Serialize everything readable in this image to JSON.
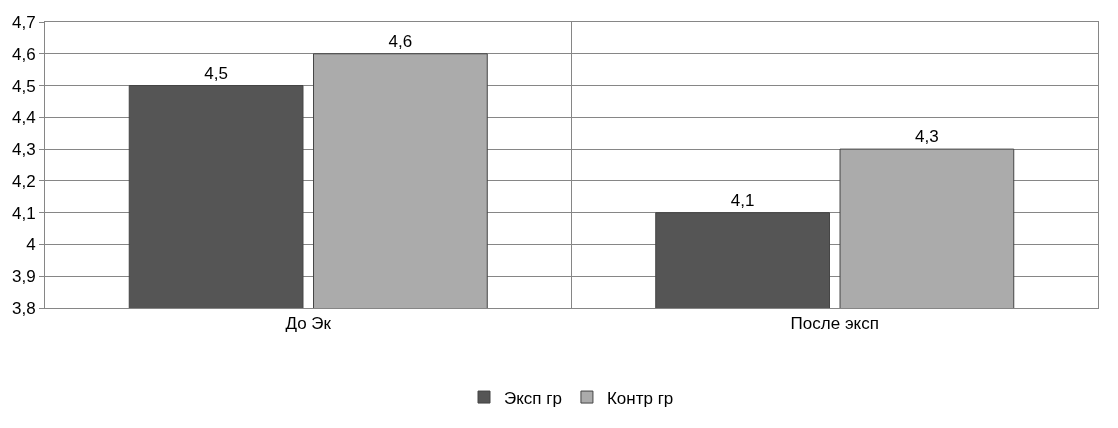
{
  "chart_data": {
    "type": "bar",
    "categories": [
      "До Эк",
      "После эксп"
    ],
    "series": [
      {
        "name": "Эксп гр",
        "color": "#555555",
        "values": [
          4.5,
          4.1
        ],
        "value_labels": [
          "4,5",
          "4,1"
        ]
      },
      {
        "name": "Контр гр",
        "color": "#ababab",
        "values": [
          4.6,
          4.3
        ],
        "value_labels": [
          "4,6",
          "4,3"
        ]
      }
    ],
    "ylim": [
      3.8,
      4.7
    ],
    "yticks": [
      {
        "value": 3.8,
        "label": "3,8"
      },
      {
        "value": 3.9,
        "label": "3,9"
      },
      {
        "value": 4.0,
        "label": "4"
      },
      {
        "value": 4.1,
        "label": "4,1"
      },
      {
        "value": 4.2,
        "label": "4,2"
      },
      {
        "value": 4.3,
        "label": "4,3"
      },
      {
        "value": 4.4,
        "label": "4,4"
      },
      {
        "value": 4.5,
        "label": "4,5"
      },
      {
        "value": 4.6,
        "label": "4,6"
      },
      {
        "value": 4.7,
        "label": "4,7"
      }
    ],
    "grid": true,
    "legend": "bottom"
  }
}
